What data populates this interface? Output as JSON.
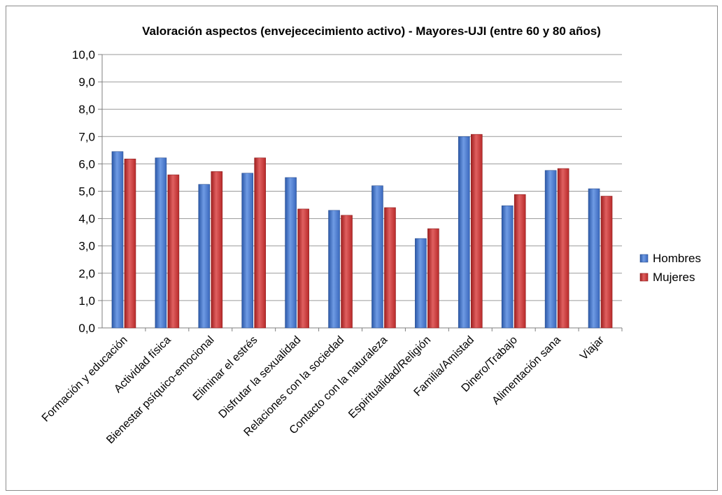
{
  "chart_data": {
    "type": "bar",
    "title": "Valoración aspectos (envejececimiento activo) - Mayores-UJI (entre 60 y 80 años)",
    "xlabel": "",
    "ylabel": "",
    "ylim": [
      0,
      10
    ],
    "ytick_step": 1,
    "ytick_labels": [
      "0,0",
      "1,0",
      "2,0",
      "3,0",
      "4,0",
      "5,0",
      "6,0",
      "7,0",
      "8,0",
      "9,0",
      "10,0"
    ],
    "grid": true,
    "legend_position": "right",
    "categories": [
      "Formación y educación",
      "Actividad física",
      "Bienestar psíquico-emocional",
      "Eliminar el estrés",
      "Disfrutar la sexualidad",
      "Relaciones con la sociedad",
      "Contacto con la naturaleza",
      "Espiritualidad/Religión",
      "Familia/Amistad",
      "Dinero/Trabajo",
      "Alimentación sana",
      "Viajar"
    ],
    "series": [
      {
        "name": "Hombres",
        "color": "#3f70c8",
        "values": [
          6.45,
          6.22,
          5.25,
          5.66,
          5.5,
          4.3,
          5.2,
          3.27,
          7.0,
          4.47,
          5.76,
          5.09
        ]
      },
      {
        "name": "Mujeres",
        "color": "#c83232",
        "values": [
          6.18,
          5.6,
          5.72,
          6.22,
          4.35,
          4.12,
          4.4,
          3.63,
          7.08,
          4.88,
          5.83,
          4.82
        ]
      }
    ]
  }
}
